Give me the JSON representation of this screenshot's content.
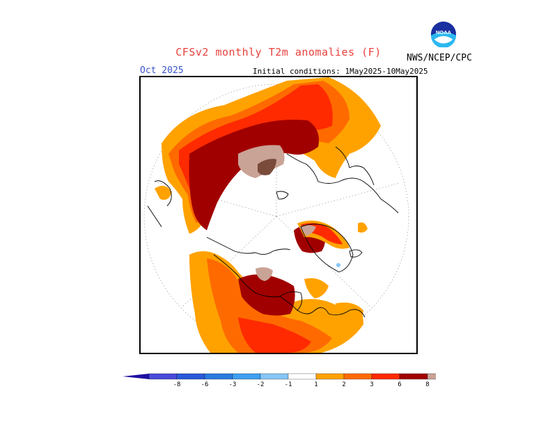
{
  "header": {
    "title": "CFSv2 monthly T2m anomalies (F)",
    "agency": "NWS/NCEP/CPC",
    "logo_text": "NOAA",
    "forecast_month": "Oct 2025",
    "initial_conditions": "Initial conditions: 1May2025-10May2025"
  },
  "colors": {
    "title": "#e8413c",
    "month": "#3a55c8",
    "neg8": "#1f0fa0",
    "neg6": "#4a4ad8",
    "neg3": "#2a7ae0",
    "neg2": "#3ea0f0",
    "neg1": "#86c6f8",
    "pos1": "#ffa200",
    "pos2": "#ff6a00",
    "pos3": "#ff2a00",
    "pos6": "#a10000",
    "pos8": "#c9a396",
    "pos_max": "#7a4a3a"
  },
  "legend": {
    "tick_labels": [
      "-8",
      "-6",
      "-3",
      "-2",
      "-1",
      "1",
      "2",
      "3",
      "6",
      "8"
    ]
  }
}
